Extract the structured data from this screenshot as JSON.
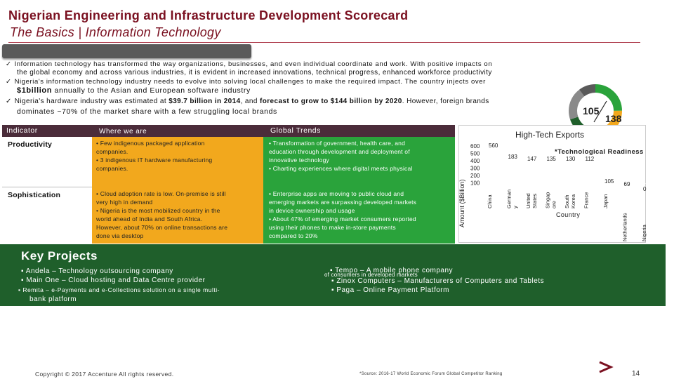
{
  "header": {
    "title": "Nigerian Engineering and Infrastructure Development Scorecard",
    "subtitle": "The Basics | Information Technology"
  },
  "bullets": [
    {
      "line1": "Information technology has transformed the way organizations, businesses, and even individual coordinate and work. With positive impacts on",
      "line2": "the global economy and across various industries, it is evident in increased innovations, technical progress, enhanced workforce productivity"
    },
    {
      "line1": "Nigeria's information technology industry needs to evolve into solving local challenges to make the required impact. The country injects over",
      "line2_bold": "$1billion",
      "line2": " annually to the Asian and European software industry"
    },
    {
      "line1_a": "Nigeria's hardware industry was estimated at ",
      "line1_b": "$39.7 billion in 2014",
      "line1_c": ", and ",
      "line1_d": "forecast to grow to $144 billion by 2020",
      "line1_e": ". However, foreign brands",
      "line2": "dominates ~70% of the market share with a few struggling local brands"
    }
  ],
  "gauge": {
    "value_a": "105",
    "value_b": "138",
    "colors": [
      "#1f5f2b",
      "#2aa33b",
      "#f2a81d",
      "#8a8a8a",
      "#5a5a5a"
    ]
  },
  "table": {
    "headers": [
      "Indicator",
      "Where we are",
      "Global Trends"
    ],
    "rows": [
      {
        "indicator": "Productivity",
        "where": [
          "• Few indigenous packaged application",
          "   companies.",
          "• 3 indigenous IT hardware manufacturing",
          "   companies."
        ],
        "trends": [
          "• Transformation of government, health care, and",
          "   education through development and deployment of",
          "   innovative technology",
          "• Charting experiences where digital meets physical"
        ]
      },
      {
        "indicator": "Sophistication",
        "where": [
          "• Cloud adoption rate is low. On-premise is still",
          "   very high in demand",
          "• Nigeria is the most mobilized country in the",
          "   world ahead of India and South Africa.",
          "   However, about 70% on online transactions are",
          "   done via desktop"
        ],
        "trends": [
          "• Enterprise apps are moving to public cloud and",
          "   emerging markets are surpassing developed markets",
          "   in device ownership and usage",
          "• About 47% of emerging market consumers reported",
          "   using their phones to make in-store payments",
          "   compared to 20%"
        ]
      }
    ]
  },
  "chart_data": {
    "type": "bar",
    "title": "High-Tech Exports",
    "subtitle": "*Technological Readiness",
    "xlabel": "Country",
    "ylabel": "Amount ($Billion)",
    "yticks": [
      "600",
      "500",
      "400",
      "300",
      "200",
      "100"
    ],
    "ylim": [
      0,
      600
    ],
    "categories": [
      "China",
      "Germany",
      "United States",
      "Singapore",
      "South Korea",
      "France",
      "Japan",
      "Netherlands",
      "Nigeria"
    ],
    "category_lines": [
      [
        "China"
      ],
      [
        "German",
        "y"
      ],
      [
        "United",
        "States"
      ],
      [
        "Singap",
        "ore"
      ],
      [
        "South",
        "Korea"
      ],
      [
        "France"
      ],
      [
        "Japan"
      ],
      [
        "Netherlands"
      ],
      [
        "Nigeria"
      ]
    ],
    "values": [
      560,
      183,
      147,
      135,
      130,
      112,
      105,
      69,
      0.14
    ],
    "value_labels": [
      "560",
      "183",
      "147",
      "135",
      "130",
      "112",
      "105",
      "69",
      "0.14"
    ],
    "bar_color": "#ffffff"
  },
  "key_projects": {
    "title": "Key Projects",
    "left": [
      "▪ Andela – Technology outsourcing company",
      "▪ Main One – Cloud hosting and Data Centre provider",
      "▪ Remita – e-Payments and e-Collections solution on a single multi-",
      "bank platform"
    ],
    "overlap_a": "▪ Tempo – A mobile phone company",
    "overlap_b": "of consumers in developed markets",
    "right": [
      "▪ Zinox Computers – Manufacturers of Computers and Tablets",
      "▪ Paga – Online Payment Platform"
    ]
  },
  "footer": {
    "copyright": "Copyright © 2017 Accenture All rights reserved.",
    "source": "*Source: 2016-17 World Economic Forum Global Competitor Ranking",
    "page": "14"
  }
}
